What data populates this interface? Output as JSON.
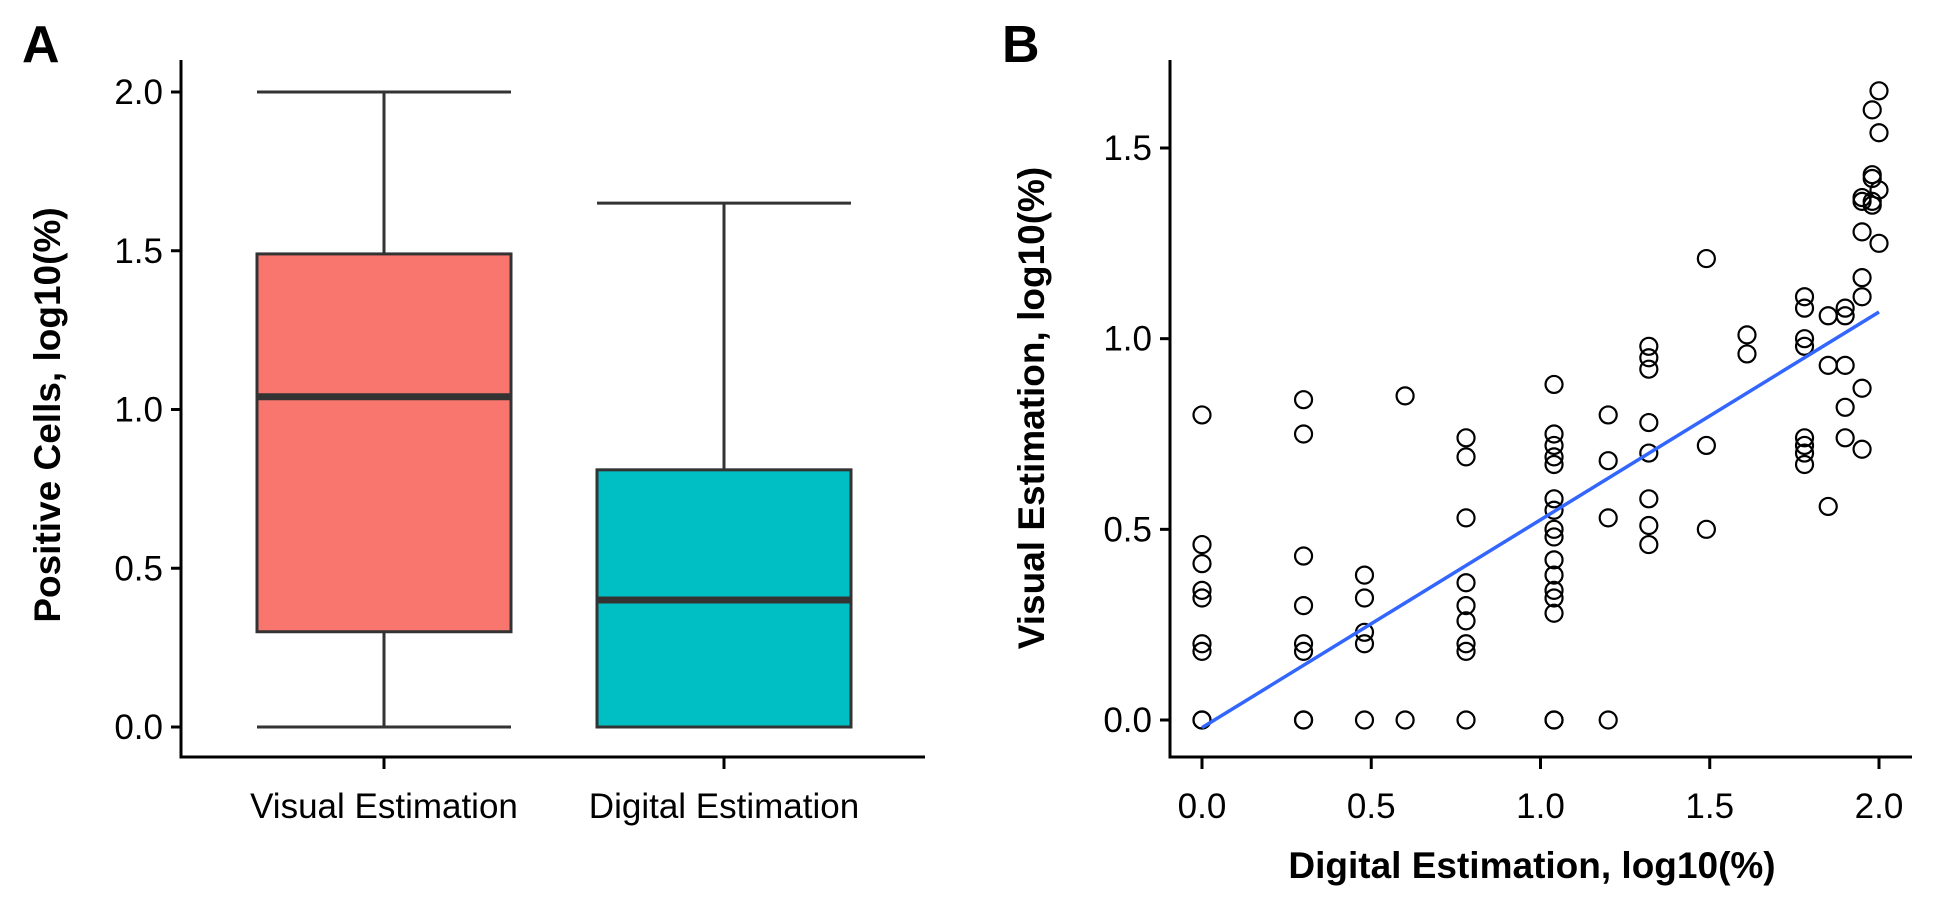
{
  "chart_data": [
    {
      "panel": "A",
      "type": "box",
      "ylabel": "Positive Cells, log10(%)",
      "xlabel": "",
      "ylim": [
        -0.1,
        2.1
      ],
      "yticks": [
        "0.0",
        "0.5",
        "1.0",
        "1.5",
        "2.0"
      ],
      "categories": [
        "Visual Estimation",
        "Digital Estimation"
      ],
      "boxes": [
        {
          "category": "Visual Estimation",
          "min": 0.0,
          "q1": 0.3,
          "median": 1.04,
          "q3": 1.49,
          "max": 2.0,
          "color": "#F8766D"
        },
        {
          "category": "Digital Estimation",
          "min": 0.0,
          "q1": 0.0,
          "median": 0.4,
          "q3": 0.81,
          "max": 1.65,
          "color": "#00BFC4"
        }
      ],
      "grid": false,
      "legend": "none"
    },
    {
      "panel": "B",
      "type": "scatter",
      "xlabel": "Digital Estimation, log10(%)",
      "ylabel": "Visual Estimation, log10(%)",
      "xlim": [
        -0.1,
        2.1
      ],
      "ylim": [
        -0.1,
        1.72
      ],
      "xticks": [
        "0.0",
        "0.5",
        "1.0",
        "1.5",
        "2.0"
      ],
      "yticks": [
        "0.0",
        "0.5",
        "1.0",
        "1.5"
      ],
      "points": [
        [
          0.0,
          0.8
        ],
        [
          0.0,
          0.46
        ],
        [
          0.0,
          0.41
        ],
        [
          0.0,
          0.34
        ],
        [
          0.0,
          0.32
        ],
        [
          0.0,
          0.2
        ],
        [
          0.0,
          0.18
        ],
        [
          0.0,
          0.0
        ],
        [
          0.0,
          0.0
        ],
        [
          0.3,
          0.84
        ],
        [
          0.3,
          0.75
        ],
        [
          0.3,
          0.43
        ],
        [
          0.3,
          0.3
        ],
        [
          0.3,
          0.2
        ],
        [
          0.3,
          0.18
        ],
        [
          0.3,
          0.0
        ],
        [
          0.3,
          0.0
        ],
        [
          0.48,
          0.38
        ],
        [
          0.48,
          0.32
        ],
        [
          0.48,
          0.23
        ],
        [
          0.48,
          0.2
        ],
        [
          0.48,
          0.0
        ],
        [
          0.6,
          0.85
        ],
        [
          0.6,
          0.0
        ],
        [
          0.78,
          0.74
        ],
        [
          0.78,
          0.69
        ],
        [
          0.78,
          0.53
        ],
        [
          0.78,
          0.36
        ],
        [
          0.78,
          0.3
        ],
        [
          0.78,
          0.26
        ],
        [
          0.78,
          0.2
        ],
        [
          0.78,
          0.18
        ],
        [
          0.78,
          0.0
        ],
        [
          1.04,
          0.88
        ],
        [
          1.04,
          0.75
        ],
        [
          1.04,
          0.72
        ],
        [
          1.04,
          0.69
        ],
        [
          1.04,
          0.67
        ],
        [
          1.04,
          0.58
        ],
        [
          1.04,
          0.55
        ],
        [
          1.04,
          0.5
        ],
        [
          1.04,
          0.48
        ],
        [
          1.04,
          0.42
        ],
        [
          1.04,
          0.38
        ],
        [
          1.04,
          0.34
        ],
        [
          1.04,
          0.32
        ],
        [
          1.04,
          0.28
        ],
        [
          1.04,
          0.0
        ],
        [
          1.04,
          0.0
        ],
        [
          1.2,
          0.8
        ],
        [
          1.2,
          0.68
        ],
        [
          1.2,
          0.53
        ],
        [
          1.2,
          0.0
        ],
        [
          1.32,
          0.98
        ],
        [
          1.32,
          0.95
        ],
        [
          1.32,
          0.92
        ],
        [
          1.32,
          0.78
        ],
        [
          1.32,
          0.7
        ],
        [
          1.32,
          0.58
        ],
        [
          1.32,
          0.51
        ],
        [
          1.32,
          0.46
        ],
        [
          1.49,
          1.21
        ],
        [
          1.49,
          0.72
        ],
        [
          1.49,
          0.5
        ],
        [
          1.61,
          1.01
        ],
        [
          1.61,
          0.96
        ],
        [
          1.78,
          1.11
        ],
        [
          1.78,
          1.08
        ],
        [
          1.78,
          1.0
        ],
        [
          1.78,
          0.98
        ],
        [
          1.78,
          0.74
        ],
        [
          1.78,
          0.72
        ],
        [
          1.78,
          0.7
        ],
        [
          1.78,
          0.67
        ],
        [
          1.85,
          1.06
        ],
        [
          1.85,
          0.93
        ],
        [
          1.85,
          0.56
        ],
        [
          1.9,
          1.08
        ],
        [
          1.9,
          1.06
        ],
        [
          1.9,
          0.93
        ],
        [
          1.9,
          0.82
        ],
        [
          1.9,
          0.74
        ],
        [
          1.95,
          1.37
        ],
        [
          1.95,
          1.36
        ],
        [
          1.95,
          1.28
        ],
        [
          1.95,
          1.16
        ],
        [
          1.95,
          1.11
        ],
        [
          1.95,
          0.87
        ],
        [
          1.95,
          0.71
        ],
        [
          1.98,
          1.6
        ],
        [
          1.98,
          1.43
        ],
        [
          1.98,
          1.42
        ],
        [
          1.98,
          1.36
        ],
        [
          1.98,
          1.35
        ],
        [
          2.0,
          1.65
        ],
        [
          2.0,
          1.54
        ],
        [
          2.0,
          1.39
        ],
        [
          2.0,
          1.25
        ]
      ],
      "fit_line": {
        "x": [
          0.0,
          2.0
        ],
        "y": [
          -0.02,
          1.07
        ],
        "color": "#3366FF"
      },
      "grid": false,
      "legend": "none"
    }
  ]
}
